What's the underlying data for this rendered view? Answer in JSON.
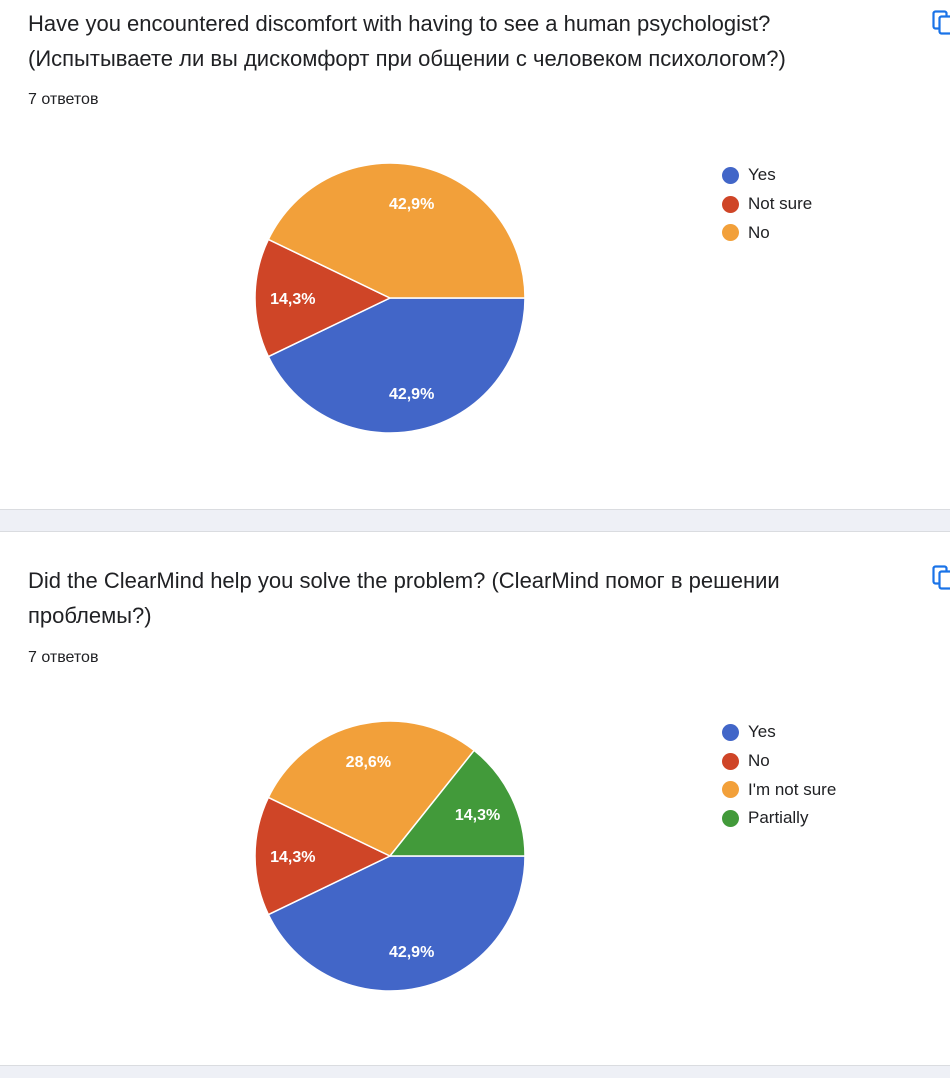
{
  "colors": {
    "blue": "#4266c8",
    "red": "#cf4527",
    "orange": "#f2a03a",
    "green": "#429a3a"
  },
  "icons": {
    "copy": "copy-icon"
  },
  "chart_data": [
    {
      "type": "pie",
      "title": "Have you encountered discomfort with having to see a human psychologist? (Испытываете ли вы дискомфорт при общении с человеком психологом?)",
      "subtitle": "7 ответов",
      "legend_position": "right",
      "slices": [
        {
          "label": "Yes",
          "value": 42.9,
          "display": "42,9%",
          "color": "#4266c8"
        },
        {
          "label": "Not sure",
          "value": 14.3,
          "display": "14,3%",
          "color": "#cf4527"
        },
        {
          "label": "No",
          "value": 42.9,
          "display": "42,9%",
          "color": "#f2a03a"
        }
      ]
    },
    {
      "type": "pie",
      "title": "Did the ClearMind help you solve the problem? (ClearMind помог в решении проблемы?)",
      "subtitle": "7 ответов",
      "legend_position": "right",
      "slices": [
        {
          "label": "Yes",
          "value": 42.9,
          "display": "42,9%",
          "color": "#4266c8"
        },
        {
          "label": "No",
          "value": 14.3,
          "display": "14,3%",
          "color": "#cf4527"
        },
        {
          "label": "I'm not sure",
          "value": 28.6,
          "display": "28,6%",
          "color": "#f2a03a"
        },
        {
          "label": "Partially",
          "value": 14.3,
          "display": "14,3%",
          "color": "#429a3a"
        }
      ]
    }
  ]
}
